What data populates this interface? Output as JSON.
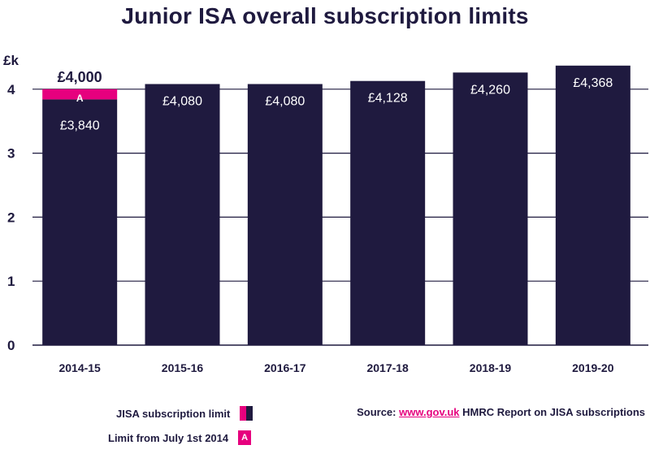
{
  "title": "Junior ISA overall subscription limits",
  "chart_data": {
    "type": "bar",
    "ylabel": "£k",
    "ylim": [
      0,
      4.4
    ],
    "yticks": [
      0,
      1,
      2,
      3,
      4
    ],
    "categories": [
      "2014-15",
      "2015-16",
      "2016-17",
      "2017-18",
      "2018-19",
      "2019-20"
    ],
    "values": [
      3.84,
      4.08,
      4.08,
      4.128,
      4.26,
      4.368
    ],
    "value_labels": [
      "£3,840",
      "£4,080",
      "£4,080",
      "£4,128",
      "£4,260",
      "£4,368"
    ],
    "extra": {
      "category": "2014-15",
      "value": 4.0,
      "top_label": "£4,000",
      "marker": "A"
    },
    "colors": {
      "bar": "#1f1a3f",
      "extra": "#e6007e"
    }
  },
  "legend": {
    "limit_label": "JISA subscription limit",
    "july_label": "Limit from July 1st 2014",
    "july_marker": "A"
  },
  "source": {
    "prefix": "Source:",
    "link_text": "www.gov.uk",
    "suffix": " HMRC Report on JISA subscriptions"
  }
}
